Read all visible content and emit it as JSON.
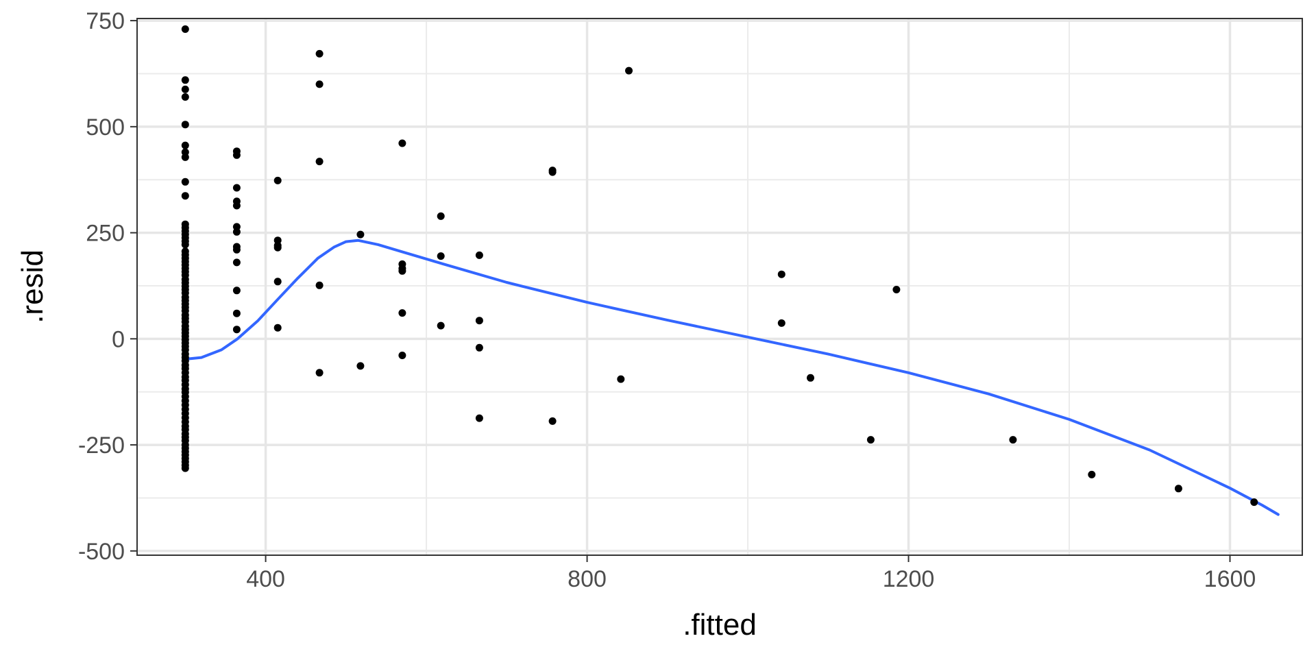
{
  "chart_data": {
    "type": "scatter",
    "xlabel": ".fitted",
    "ylabel": ".resid",
    "xlim": [
      240,
      1690
    ],
    "ylim": [
      -510,
      755
    ],
    "x_ticks": [
      400,
      800,
      1200,
      1600
    ],
    "x_tick_labels": [
      "400",
      "800",
      "1200",
      "1600"
    ],
    "x_minor_ticks": [
      600,
      1000,
      1400
    ],
    "y_ticks": [
      -500,
      -250,
      0,
      250,
      500,
      750
    ],
    "y_tick_labels": [
      "-500",
      "-250",
      "0",
      "250",
      "500",
      "750"
    ],
    "y_minor_ticks": [
      -375,
      -125,
      125,
      375,
      625
    ],
    "grid": true,
    "legend": "none",
    "point_color": "#000000",
    "smooth_color": "#3366FF",
    "points": [
      [
        300,
        730
      ],
      [
        300,
        610
      ],
      [
        300,
        588
      ],
      [
        300,
        570
      ],
      [
        300,
        505
      ],
      [
        300,
        456
      ],
      [
        300,
        440
      ],
      [
        300,
        428
      ],
      [
        300,
        370
      ],
      [
        300,
        337
      ],
      [
        300,
        270
      ],
      [
        300,
        262
      ],
      [
        300,
        254
      ],
      [
        300,
        246
      ],
      [
        300,
        238
      ],
      [
        300,
        230
      ],
      [
        300,
        222
      ],
      [
        300,
        206
      ],
      [
        300,
        198
      ],
      [
        300,
        190
      ],
      [
        300,
        182
      ],
      [
        300,
        174
      ],
      [
        300,
        166
      ],
      [
        300,
        158
      ],
      [
        300,
        150
      ],
      [
        300,
        140
      ],
      [
        300,
        132
      ],
      [
        300,
        124
      ],
      [
        300,
        116
      ],
      [
        300,
        108
      ],
      [
        300,
        98
      ],
      [
        300,
        90
      ],
      [
        300,
        82
      ],
      [
        300,
        74
      ],
      [
        300,
        66
      ],
      [
        300,
        56
      ],
      [
        300,
        48
      ],
      [
        300,
        40
      ],
      [
        300,
        30
      ],
      [
        300,
        22
      ],
      [
        300,
        14
      ],
      [
        300,
        6
      ],
      [
        300,
        -2
      ],
      [
        300,
        -10
      ],
      [
        300,
        -18
      ],
      [
        300,
        -26
      ],
      [
        300,
        -36
      ],
      [
        300,
        -44
      ],
      [
        300,
        -52
      ],
      [
        300,
        -62
      ],
      [
        300,
        -70
      ],
      [
        300,
        -80
      ],
      [
        300,
        -90
      ],
      [
        300,
        -98
      ],
      [
        300,
        -108
      ],
      [
        300,
        -118
      ],
      [
        300,
        -126
      ],
      [
        300,
        -136
      ],
      [
        300,
        -146
      ],
      [
        300,
        -156
      ],
      [
        300,
        -166
      ],
      [
        300,
        -176
      ],
      [
        300,
        -186
      ],
      [
        300,
        -196
      ],
      [
        300,
        -206
      ],
      [
        300,
        -214
      ],
      [
        300,
        -224
      ],
      [
        300,
        -232
      ],
      [
        300,
        -240
      ],
      [
        300,
        -250
      ],
      [
        300,
        -258
      ],
      [
        300,
        -266
      ],
      [
        300,
        -274
      ],
      [
        300,
        -282
      ],
      [
        300,
        -290
      ],
      [
        300,
        -298
      ],
      [
        300,
        -305
      ],
      [
        364,
        442
      ],
      [
        364,
        433
      ],
      [
        364,
        356
      ],
      [
        364,
        324
      ],
      [
        364,
        314
      ],
      [
        364,
        264
      ],
      [
        364,
        252
      ],
      [
        364,
        217
      ],
      [
        364,
        210
      ],
      [
        364,
        180
      ],
      [
        364,
        114
      ],
      [
        364,
        60
      ],
      [
        364,
        22
      ],
      [
        415,
        373
      ],
      [
        415,
        232
      ],
      [
        415,
        220
      ],
      [
        415,
        215
      ],
      [
        415,
        135
      ],
      [
        415,
        26
      ],
      [
        467,
        672
      ],
      [
        467,
        600
      ],
      [
        467,
        418
      ],
      [
        467,
        126
      ],
      [
        467,
        -80
      ],
      [
        518,
        246
      ],
      [
        518,
        -64
      ],
      [
        570,
        461
      ],
      [
        570,
        176
      ],
      [
        570,
        166
      ],
      [
        570,
        160
      ],
      [
        570,
        61
      ],
      [
        570,
        -39
      ],
      [
        618,
        289
      ],
      [
        618,
        195
      ],
      [
        618,
        31
      ],
      [
        666,
        197
      ],
      [
        666,
        43
      ],
      [
        666,
        -21
      ],
      [
        666,
        -187
      ],
      [
        757,
        397
      ],
      [
        757,
        393
      ],
      [
        757,
        -194
      ],
      [
        842,
        -95
      ],
      [
        852,
        632
      ],
      [
        1042,
        152
      ],
      [
        1042,
        37
      ],
      [
        1078,
        -92
      ],
      [
        1153,
        -238
      ],
      [
        1185,
        116
      ],
      [
        1330,
        -238
      ],
      [
        1428,
        -320
      ],
      [
        1536,
        -353
      ],
      [
        1630,
        -385
      ]
    ],
    "smooth": [
      [
        300,
        -48
      ],
      [
        320,
        -44
      ],
      [
        345,
        -26
      ],
      [
        365,
        0
      ],
      [
        390,
        42
      ],
      [
        415,
        93
      ],
      [
        440,
        143
      ],
      [
        465,
        190
      ],
      [
        485,
        216
      ],
      [
        500,
        229
      ],
      [
        515,
        232
      ],
      [
        540,
        222
      ],
      [
        570,
        205
      ],
      [
        620,
        177
      ],
      [
        700,
        133
      ],
      [
        800,
        86
      ],
      [
        900,
        44
      ],
      [
        1000,
        4
      ],
      [
        1100,
        -36
      ],
      [
        1200,
        -80
      ],
      [
        1300,
        -130
      ],
      [
        1400,
        -190
      ],
      [
        1500,
        -262
      ],
      [
        1600,
        -352
      ],
      [
        1640,
        -392
      ],
      [
        1660,
        -414
      ]
    ]
  }
}
